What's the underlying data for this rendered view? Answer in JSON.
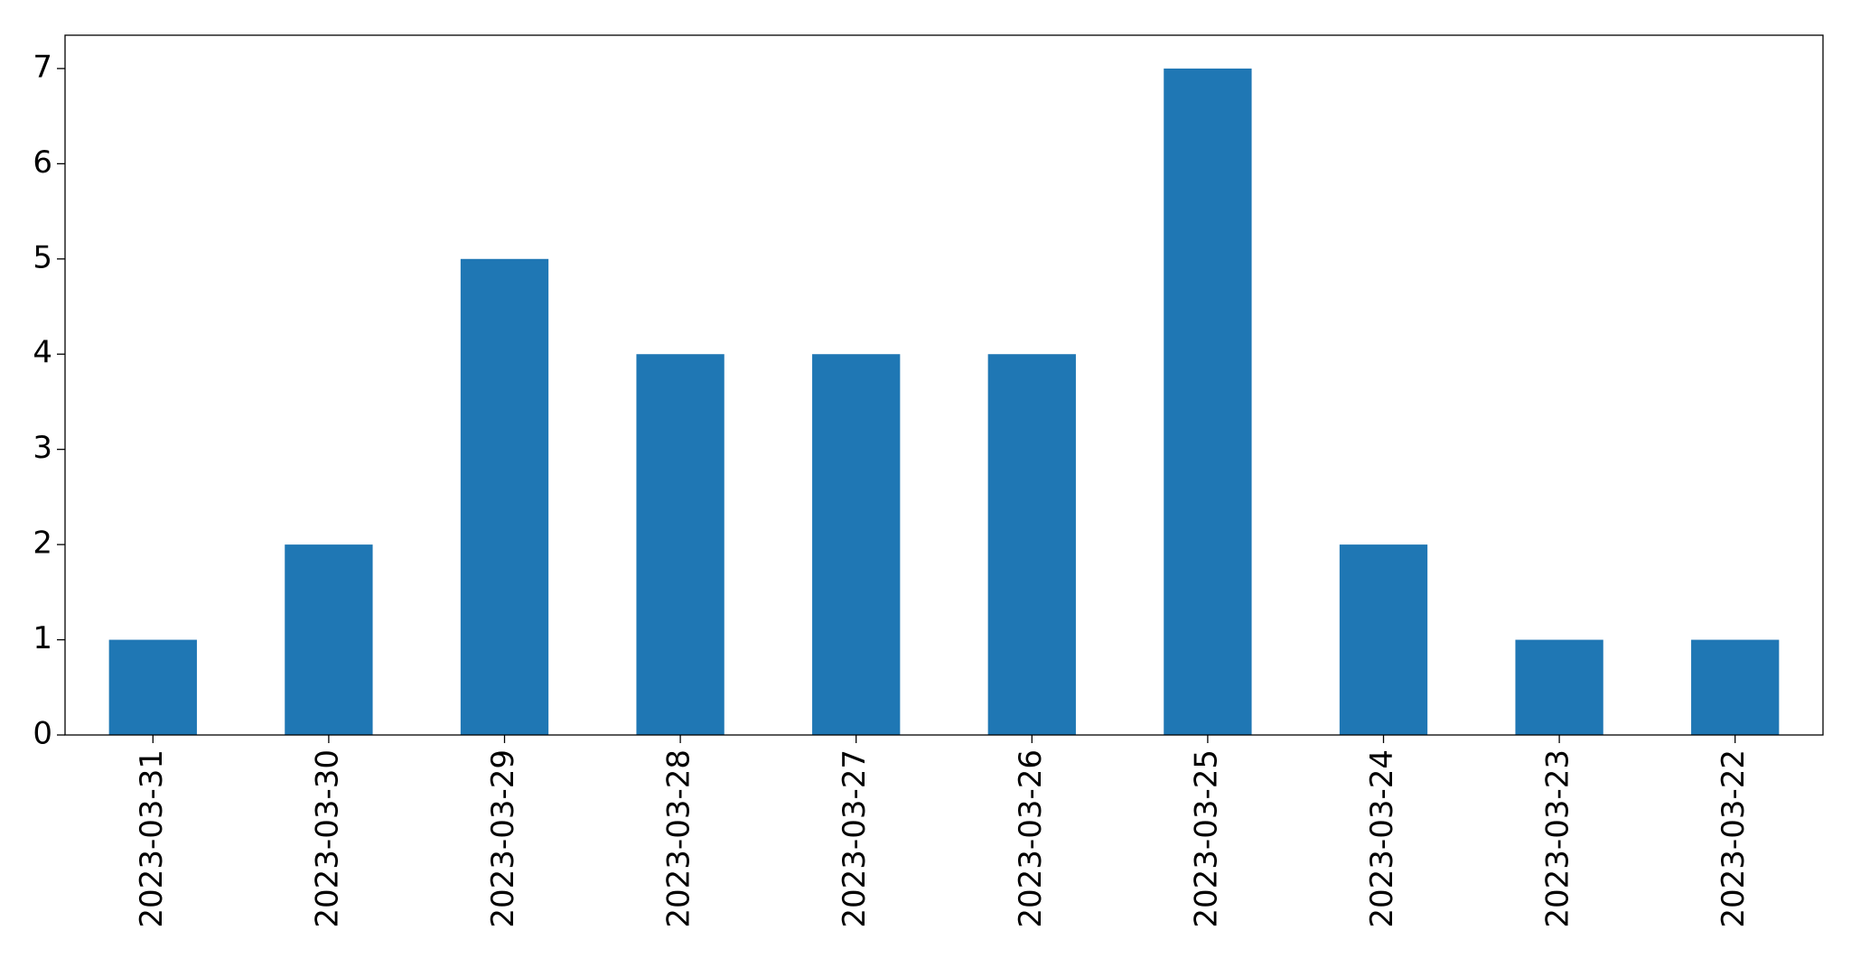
{
  "chart_data": {
    "type": "bar",
    "categories": [
      "2023-03-31",
      "2023-03-30",
      "2023-03-29",
      "2023-03-28",
      "2023-03-27",
      "2023-03-26",
      "2023-03-25",
      "2023-03-24",
      "2023-03-23",
      "2023-03-22"
    ],
    "values": [
      1,
      2,
      5,
      4,
      4,
      4,
      7,
      2,
      1,
      1
    ],
    "color": "#1f77b4",
    "ylim": [
      0,
      7.35
    ],
    "yticks": [
      0,
      1,
      2,
      3,
      4,
      5,
      6,
      7
    ],
    "grid": false
  }
}
